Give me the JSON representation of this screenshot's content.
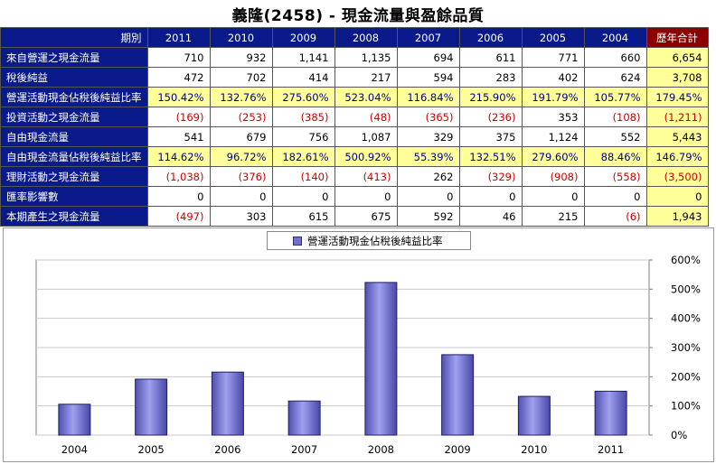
{
  "title": "義隆(2458) -  現金流量與盈餘品質",
  "table": {
    "corner_label": "期別",
    "years": [
      "2011",
      "2010",
      "2009",
      "2008",
      "2007",
      "2006",
      "2005",
      "2004"
    ],
    "total_label": "歷年合計",
    "rows": [
      {
        "label": "來自營運之現金流量",
        "values": [
          "710",
          "932",
          "1,141",
          "1,135",
          "694",
          "611",
          "771",
          "660"
        ],
        "total": "6,654",
        "highlight": false
      },
      {
        "label": "稅後純益",
        "values": [
          "472",
          "702",
          "414",
          "217",
          "594",
          "283",
          "402",
          "624"
        ],
        "total": "3,708",
        "highlight": false
      },
      {
        "label": "營運活動現金佔稅後純益比率",
        "values": [
          "150.42%",
          "132.76%",
          "275.60%",
          "523.04%",
          "116.84%",
          "215.90%",
          "191.79%",
          "105.77%"
        ],
        "total": "179.45%",
        "highlight": true
      },
      {
        "label": "投資活動之現金流量",
        "values": [
          "(169)",
          "(253)",
          "(385)",
          "(48)",
          "(365)",
          "(236)",
          "353",
          "(108)"
        ],
        "total": "(1,211)",
        "highlight": false
      },
      {
        "label": "自由現金流量",
        "values": [
          "541",
          "679",
          "756",
          "1,087",
          "329",
          "375",
          "1,124",
          "552"
        ],
        "total": "5,443",
        "highlight": false
      },
      {
        "label": "自由現金流量佔稅後純益比率",
        "values": [
          "114.62%",
          "96.72%",
          "182.61%",
          "500.92%",
          "55.39%",
          "132.51%",
          "279.60%",
          "88.46%"
        ],
        "total": "146.79%",
        "highlight": true
      },
      {
        "label": "理財活動之現金流量",
        "values": [
          "(1,038)",
          "(376)",
          "(140)",
          "(413)",
          "262",
          "(329)",
          "(908)",
          "(558)"
        ],
        "total": "(3,500)",
        "highlight": false
      },
      {
        "label": "匯率影響數",
        "values": [
          "0",
          "0",
          "0",
          "0",
          "0",
          "0",
          "0",
          "0"
        ],
        "total": "0",
        "highlight": false
      },
      {
        "label": "本期產生之現金流量",
        "values": [
          "(497)",
          "303",
          "615",
          "675",
          "592",
          "46",
          "215",
          "(6)"
        ],
        "total": "1,943",
        "highlight": false
      }
    ]
  },
  "colors": {
    "header_bg": "#0b1a8a",
    "total_header_bg": "#8b0000",
    "highlight_bg": "#ffff99",
    "negative": "#cc0000",
    "bar": "#7070d0"
  },
  "chart_data": {
    "type": "bar",
    "categories": [
      "2004",
      "2005",
      "2006",
      "2007",
      "2008",
      "2009",
      "2010",
      "2011"
    ],
    "series": [
      {
        "name": "營運活動現金佔稅後純益比率",
        "values": [
          105.77,
          191.79,
          215.9,
          116.84,
          523.04,
          275.6,
          132.76,
          150.42
        ]
      }
    ],
    "y_ticks": [
      "600%",
      "500%",
      "400%",
      "300%",
      "200%",
      "100%",
      "0%"
    ],
    "ylim": [
      0,
      600
    ],
    "y_axis_side": "right",
    "grid": true,
    "legend": "top-center"
  }
}
